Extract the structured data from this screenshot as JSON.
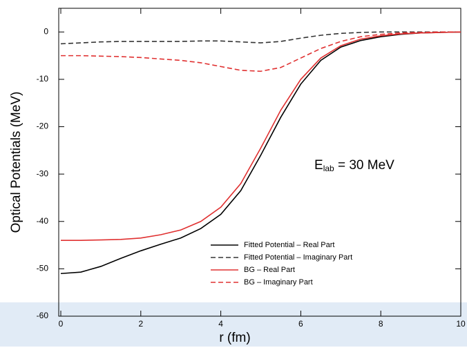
{
  "chart_data": {
    "type": "line",
    "xlabel": "r (fm)",
    "ylabel": "Optical Potentials (MeV)",
    "annotation": {
      "base": "E",
      "sub": "lab",
      "rest": " = 30 MeV"
    },
    "x": [
      0,
      0.5,
      1,
      1.5,
      2,
      2.5,
      3,
      3.5,
      4,
      4.5,
      5,
      5.5,
      6,
      6.5,
      7,
      7.5,
      8,
      8.5,
      9,
      9.5,
      10
    ],
    "series": [
      {
        "name": "Fitted Potential – Real Part",
        "color": "#000000",
        "dashed": false,
        "values": [
          -51,
          -50.7,
          -49.5,
          -47.8,
          -46.2,
          -44.8,
          -43.5,
          -41.5,
          -38.5,
          -33.5,
          -26,
          -18,
          -11,
          -6,
          -3.2,
          -1.8,
          -1,
          -0.5,
          -0.2,
          -0.1,
          0
        ]
      },
      {
        "name": "Fitted Potential – Imaginary Part",
        "color": "#333333",
        "dashed": true,
        "values": [
          -2.5,
          -2.3,
          -2.1,
          -2,
          -2,
          -2,
          -2,
          -1.9,
          -1.9,
          -2.1,
          -2.3,
          -2,
          -1.3,
          -0.7,
          -0.3,
          -0.1,
          0,
          0,
          0,
          0,
          0
        ]
      },
      {
        "name": "BG – Real Part",
        "color": "#e03030",
        "dashed": false,
        "values": [
          -44,
          -44,
          -43.9,
          -43.8,
          -43.5,
          -42.8,
          -41.8,
          -40,
          -37,
          -32,
          -24.5,
          -16.5,
          -10,
          -5.5,
          -2.9,
          -1.5,
          -0.8,
          -0.4,
          -0.2,
          -0.1,
          0
        ]
      },
      {
        "name": "BG – Imaginary Part",
        "color": "#e03030",
        "dashed": true,
        "values": [
          -5,
          -5,
          -5.1,
          -5.2,
          -5.4,
          -5.7,
          -6,
          -6.5,
          -7.3,
          -8.1,
          -8.3,
          -7.5,
          -5.5,
          -3.5,
          -2,
          -1,
          -0.5,
          -0.2,
          -0.1,
          0,
          0
        ]
      }
    ],
    "xlim": [
      0,
      10
    ],
    "ylim": [
      -60,
      5
    ],
    "xticks": [
      0,
      2,
      4,
      6,
      8,
      10
    ],
    "yticks": [
      0,
      -10,
      -20,
      -30,
      -40,
      -50,
      -60
    ],
    "legend": "lower right"
  }
}
